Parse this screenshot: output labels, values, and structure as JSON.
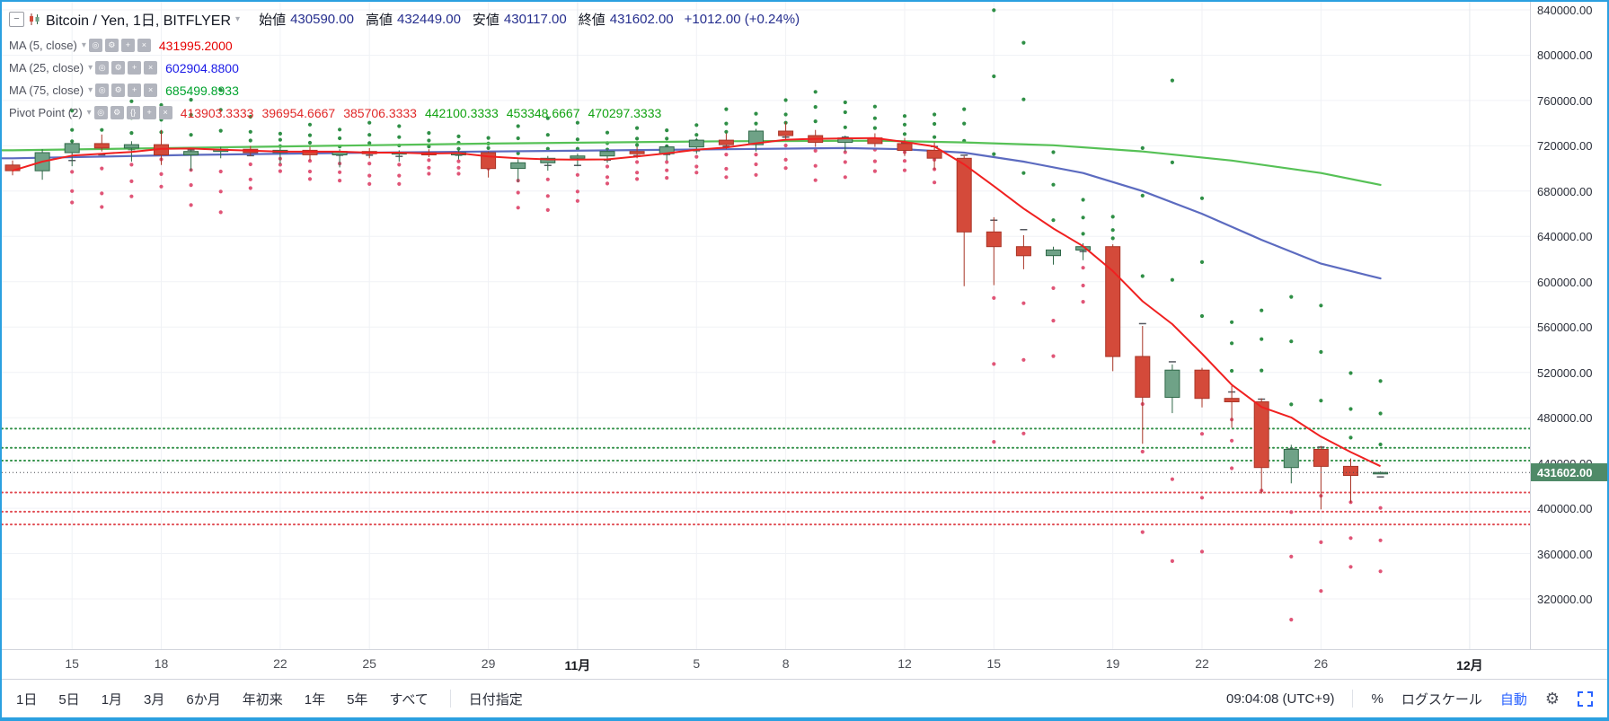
{
  "header": {
    "title": "Bitcoin / Yen, 1日, BITFLYER",
    "ohlc": [
      {
        "label": "始値",
        "value": "430590.00"
      },
      {
        "label": "高値",
        "value": "432449.00"
      },
      {
        "label": "安値",
        "value": "430117.00"
      },
      {
        "label": "終値",
        "value": "431602.00"
      }
    ],
    "change": "+1012.00 (+0.24%)",
    "value_color": "#252e8e"
  },
  "indicators": [
    {
      "name": "MA (5, close)",
      "icons": [
        "eye",
        "gear",
        "plus",
        "close"
      ],
      "values": [
        {
          "text": "431995.2000",
          "color": "#e60000"
        }
      ]
    },
    {
      "name": "MA (25, close)",
      "icons": [
        "eye",
        "gear",
        "plus",
        "close"
      ],
      "values": [
        {
          "text": "602904.8800",
          "color": "#1a1ae6"
        }
      ]
    },
    {
      "name": "MA (75, close)",
      "icons": [
        "eye",
        "gear",
        "plus",
        "close"
      ],
      "values": [
        {
          "text": "685499.8933",
          "color": "#00a32e"
        }
      ]
    },
    {
      "name": "Pivot Point (2)",
      "icons": [
        "eye",
        "gear",
        "braces",
        "plus",
        "close"
      ],
      "values": [
        {
          "text": "413903.3333",
          "color": "#e02929"
        },
        {
          "text": "396954.6667",
          "color": "#e02929"
        },
        {
          "text": "385706.3333",
          "color": "#e02929"
        },
        {
          "text": "442100.3333",
          "color": "#11a211"
        },
        {
          "text": "453348.6667",
          "color": "#11a211"
        },
        {
          "text": "470297.3333",
          "color": "#11a211"
        }
      ]
    }
  ],
  "toolbar": {
    "ranges": [
      "1日",
      "5日",
      "1月",
      "3月",
      "6か月",
      "年初来",
      "1年",
      "5年",
      "すべて"
    ],
    "goto_date": "日付指定",
    "time": "09:04:08 (UTC+9)",
    "percent": "%",
    "log": "ログスケール",
    "auto": "自動",
    "auto_color": "#2962ff"
  },
  "chart_data": {
    "type": "candlestick",
    "title": "Bitcoin / Yen, 1日, BITFLYER",
    "ylim": [
      320000,
      840000
    ],
    "grid": true,
    "up_color": "#6fa287",
    "up_border": "#2f6848",
    "down_color": "#d44a3a",
    "down_border": "#a93527",
    "candles": [
      [
        703000,
        707000,
        694000,
        698000
      ],
      [
        698000,
        717000,
        690000,
        714000
      ],
      [
        714000,
        724000,
        702000,
        722000
      ],
      [
        722000,
        730000,
        715000,
        718000
      ],
      [
        718000,
        724000,
        706000,
        721000
      ],
      [
        721000,
        734000,
        703000,
        712000
      ],
      [
        712000,
        718000,
        698000,
        715000
      ],
      [
        715000,
        719000,
        709000,
        717000
      ],
      [
        717000,
        720000,
        711000,
        714000
      ],
      [
        714000,
        718000,
        704000,
        716000
      ],
      [
        716000,
        719000,
        707000,
        712000
      ],
      [
        712000,
        717000,
        701000,
        715000
      ],
      [
        715000,
        718000,
        709000,
        713000
      ],
      [
        713000,
        716000,
        706000,
        714000
      ],
      [
        714000,
        717000,
        710000,
        712000
      ],
      [
        712000,
        716000,
        708000,
        714000
      ],
      [
        714000,
        715000,
        692000,
        700000
      ],
      [
        700000,
        708000,
        688000,
        705000
      ],
      [
        705000,
        711000,
        698000,
        709000
      ],
      [
        709000,
        713000,
        702000,
        711000
      ],
      [
        711000,
        717000,
        705000,
        715000
      ],
      [
        715000,
        719000,
        709000,
        713000
      ],
      [
        713000,
        721000,
        707000,
        719000
      ],
      [
        719000,
        727000,
        713000,
        725000
      ],
      [
        725000,
        731000,
        717000,
        721000
      ],
      [
        721000,
        735000,
        715000,
        733000
      ],
      [
        733000,
        741000,
        725000,
        729000
      ],
      [
        729000,
        734000,
        719000,
        723000
      ],
      [
        723000,
        729000,
        715000,
        727000
      ],
      [
        727000,
        731000,
        719000,
        722000
      ],
      [
        722000,
        727000,
        711000,
        716000
      ],
      [
        716000,
        723000,
        699000,
        709000
      ],
      [
        709000,
        711000,
        596000,
        644000
      ],
      [
        644000,
        657000,
        597000,
        631000
      ],
      [
        631000,
        641000,
        611000,
        623000
      ],
      [
        623000,
        631000,
        615000,
        628000
      ],
      [
        628000,
        634000,
        619000,
        631000
      ],
      [
        631000,
        633000,
        521000,
        534000
      ],
      [
        534000,
        561000,
        457000,
        498000
      ],
      [
        498000,
        527000,
        484000,
        522000
      ],
      [
        522000,
        524000,
        489000,
        497000
      ],
      [
        497000,
        508000,
        471000,
        494000
      ],
      [
        494000,
        497000,
        413000,
        436000
      ],
      [
        436000,
        456000,
        422000,
        452000
      ],
      [
        452000,
        455000,
        399000,
        437000
      ],
      [
        437000,
        444000,
        405000,
        429000
      ],
      [
        430590,
        432449,
        430117,
        431602
      ]
    ],
    "ma5": {
      "label": "MA (5, close)",
      "value": 431995.2,
      "color": "#f02020"
    },
    "ma25": {
      "label": "MA (25, close)",
      "value": 602904.88,
      "color": "#5c6bc0",
      "points": [
        [
          0,
          709000
        ],
        [
          6,
          712000
        ],
        [
          12,
          714000
        ],
        [
          18,
          715500
        ],
        [
          24,
          717000
        ],
        [
          28,
          718000
        ],
        [
          30,
          717000
        ],
        [
          32,
          714000
        ],
        [
          34,
          706000
        ],
        [
          36,
          696000
        ],
        [
          38,
          680000
        ],
        [
          40,
          660000
        ],
        [
          42,
          637000
        ],
        [
          44,
          616000
        ],
        [
          46,
          602905
        ]
      ]
    },
    "ma75": {
      "label": "MA (75, close)",
      "value": 685499.8933,
      "color": "#56c156",
      "points": [
        [
          0,
          716000
        ],
        [
          8,
          719000
        ],
        [
          16,
          722000
        ],
        [
          24,
          724000
        ],
        [
          29,
          724500
        ],
        [
          32,
          723000
        ],
        [
          35,
          720500
        ],
        [
          38,
          715000
        ],
        [
          41,
          707000
        ],
        [
          44,
          696000
        ],
        [
          46,
          685500
        ]
      ]
    },
    "pivot_dots": {
      "r_color": "#2f8f46",
      "s_color": "#e05577",
      "p_color": "#55585f"
    },
    "pivot_lines": [
      {
        "name": "R3",
        "value": 470297.3333,
        "color": "#2f8f46"
      },
      {
        "name": "R2",
        "value": 453348.6667,
        "color": "#2f8f46"
      },
      {
        "name": "R1",
        "value": 442100.3333,
        "color": "#2f8f46"
      },
      {
        "name": "S1",
        "value": 413903.3333,
        "color": "#e0484f"
      },
      {
        "name": "S2",
        "value": 396954.6667,
        "color": "#e0484f"
      },
      {
        "name": "S3",
        "value": 385706.3333,
        "color": "#e0484f"
      }
    ],
    "close_price": {
      "value": 431602,
      "label": "431602.00",
      "bg": "#4f8a68"
    },
    "price_ticks": [
      {
        "value": 840000,
        "label": "840000.00"
      },
      {
        "value": 800000,
        "label": "800000.00"
      },
      {
        "value": 760000,
        "label": "760000.00"
      },
      {
        "value": 720000,
        "label": "720000.00"
      },
      {
        "value": 680000,
        "label": "680000.00"
      },
      {
        "value": 640000,
        "label": "640000.00"
      },
      {
        "value": 600000,
        "label": "600000.00"
      },
      {
        "value": 560000,
        "label": "560000.00"
      },
      {
        "value": 520000,
        "label": "520000.00"
      },
      {
        "value": 480000,
        "label": "480000.00"
      },
      {
        "value": 440000,
        "label": "440000.00"
      },
      {
        "value": 400000,
        "label": "400000.00"
      },
      {
        "value": 360000,
        "label": "360000.00"
      },
      {
        "value": 320000,
        "label": "320000.00"
      }
    ],
    "time_ticks": [
      {
        "label": "15",
        "bar": 2,
        "major": false
      },
      {
        "label": "18",
        "bar": 5,
        "major": false
      },
      {
        "label": "22",
        "bar": 9,
        "major": false
      },
      {
        "label": "25",
        "bar": 12,
        "major": false
      },
      {
        "label": "29",
        "bar": 16,
        "major": false
      },
      {
        "label": "11月",
        "bar": 19,
        "major": true
      },
      {
        "label": "5",
        "bar": 23,
        "major": false
      },
      {
        "label": "8",
        "bar": 26,
        "major": false
      },
      {
        "label": "12",
        "bar": 30,
        "major": false
      },
      {
        "label": "15",
        "bar": 33,
        "major": false
      },
      {
        "label": "19",
        "bar": 37,
        "major": false
      },
      {
        "label": "22",
        "bar": 40,
        "major": false
      },
      {
        "label": "26",
        "bar": 44,
        "major": false
      },
      {
        "label": "12月",
        "bar": 49,
        "major": true
      }
    ]
  }
}
